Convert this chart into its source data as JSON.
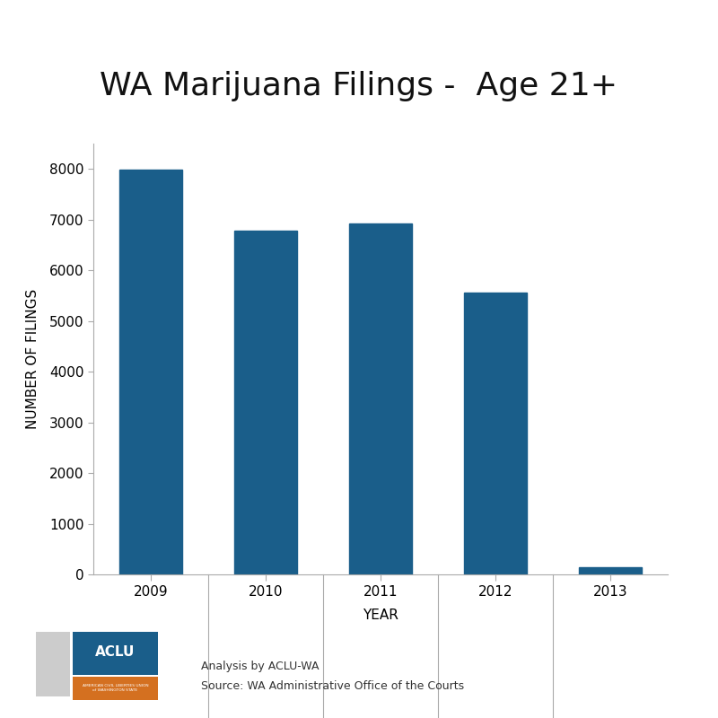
{
  "title": "WA Marijuana Filings -  Age 21+",
  "categories": [
    "2009",
    "2010",
    "2011",
    "2012",
    "2013"
  ],
  "values": [
    7990,
    6780,
    6920,
    5560,
    150
  ],
  "bar_color": "#1a5e8a",
  "xlabel": "YEAR",
  "ylabel": "NUMBER OF FILINGS",
  "ylim": [
    0,
    8500
  ],
  "yticks": [
    0,
    1000,
    2000,
    3000,
    4000,
    5000,
    6000,
    7000,
    8000
  ],
  "title_fontsize": 26,
  "axis_label_fontsize": 11,
  "tick_fontsize": 11,
  "background_color": "#ffffff",
  "annotation_line1": "Analysis by ACLU-WA",
  "annotation_line2": "Source: WA Administrative Office of the Courts",
  "aclu_blue": "#1a5e8a",
  "aclu_orange": "#d47020"
}
